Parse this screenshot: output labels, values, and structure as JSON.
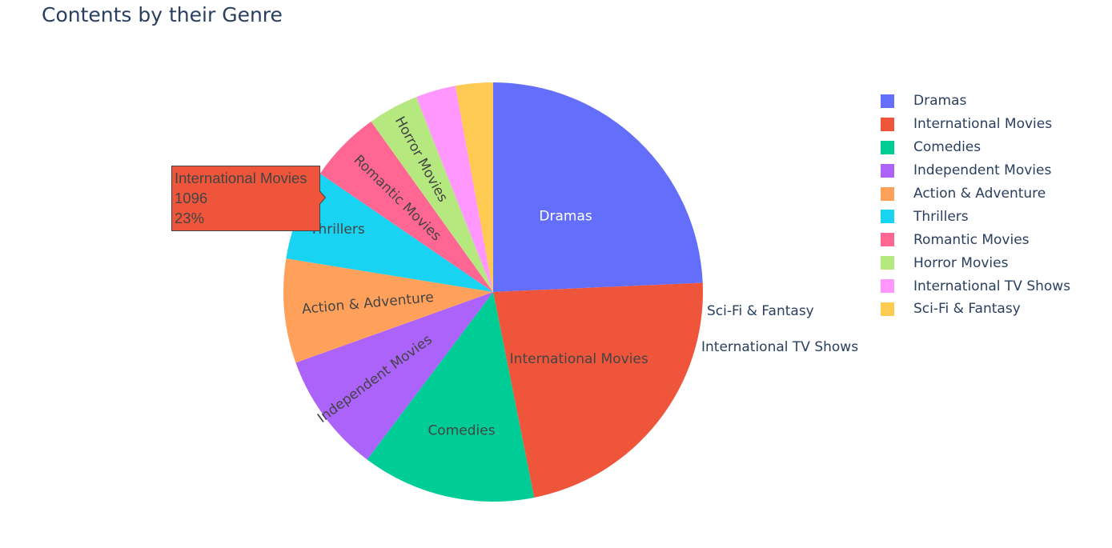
{
  "chart_data": {
    "type": "pie",
    "title": "Contents by their Genre",
    "labels": [
      "Dramas",
      "International Movies",
      "Comedies",
      "Independent Movies",
      "Action & Adventure",
      "Thrillers",
      "Romantic Movies",
      "Horror Movies",
      "International TV Shows",
      "Sci-Fi & Fantasy"
    ],
    "values": [
      1180,
      1096,
      650,
      450,
      390,
      340,
      270,
      190,
      150,
      140
    ],
    "colors": [
      "#636efa",
      "#EF553B",
      "#00cc96",
      "#ab63fa",
      "#FFA15A",
      "#19d3f3",
      "#FF6692",
      "#B6E880",
      "#FF97FF",
      "#FECB52"
    ],
    "slice_text": [
      "Dramas",
      "International Movies",
      "Comedies",
      "Independent Movies",
      "Action & Adventure",
      "Thrillers",
      "Romantic Movies",
      "Horror Movies",
      "International TV Shows",
      "Sci-Fi & Fantasy"
    ],
    "legend_position": "right",
    "hover": {
      "label": "International Movies",
      "value": "1096",
      "percent": "23%",
      "color": "#EF553B"
    }
  }
}
